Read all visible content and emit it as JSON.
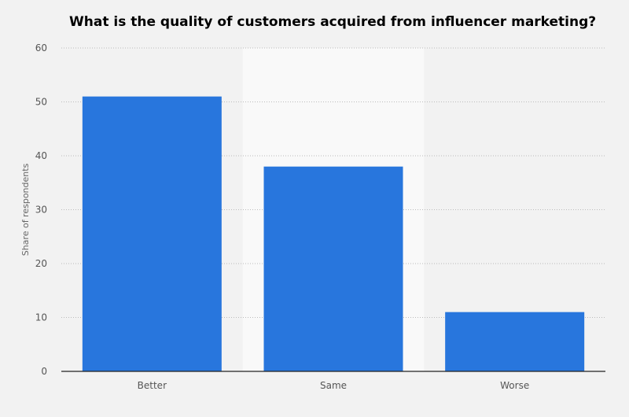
{
  "chart_data": {
    "type": "bar",
    "title": "What is the quality of customers acquired from influencer marketing?",
    "xlabel": "",
    "ylabel": "Share of respondents",
    "categories": [
      "Better",
      "Same",
      "Worse"
    ],
    "values": [
      51,
      38,
      11
    ],
    "ylim": [
      0,
      60
    ],
    "yticks": [
      0,
      10,
      20,
      30,
      40,
      50,
      60
    ],
    "grid": true,
    "bar_color": "#2876dd",
    "highlight_band_color": "#f9f9f9"
  }
}
